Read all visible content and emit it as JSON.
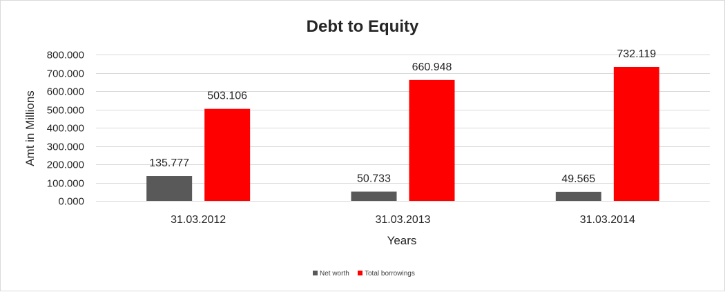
{
  "chart_data": {
    "type": "bar",
    "title": "Debt to Equity",
    "xlabel": "Years",
    "ylabel": "Amt in Millions",
    "categories": [
      "31.03.2012",
      "31.03.2013",
      "31.03.2014"
    ],
    "series": [
      {
        "name": "Net worth",
        "values": [
          135.777,
          50.733,
          49.565
        ],
        "labels": [
          "135.777",
          "50.733",
          "49.565"
        ],
        "color": "#595959"
      },
      {
        "name": "Total borrowings",
        "values": [
          503.106,
          660.948,
          732.119
        ],
        "labels": [
          "503.106",
          "660.948",
          "732.119"
        ],
        "color": "#ff0000"
      }
    ],
    "ylim": [
      0,
      800
    ],
    "yticks": [
      0,
      100,
      200,
      300,
      400,
      500,
      600,
      700,
      800
    ],
    "ytick_labels": [
      "0.000",
      "100.000",
      "200.000",
      "300.000",
      "400.000",
      "500.000",
      "600.000",
      "700.000",
      "800.000"
    ],
    "grid": true,
    "legend_position": "bottom"
  }
}
